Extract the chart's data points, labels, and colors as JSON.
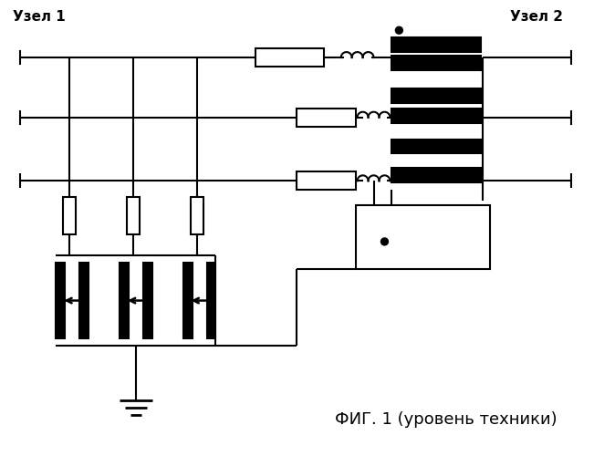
{
  "title": "ФИГ. 1 (уровень техники)",
  "label_node1": "Узел 1",
  "label_node2": "Узел 2",
  "bg_color": "#ffffff",
  "line_color": "#000000",
  "lw": 1.5
}
